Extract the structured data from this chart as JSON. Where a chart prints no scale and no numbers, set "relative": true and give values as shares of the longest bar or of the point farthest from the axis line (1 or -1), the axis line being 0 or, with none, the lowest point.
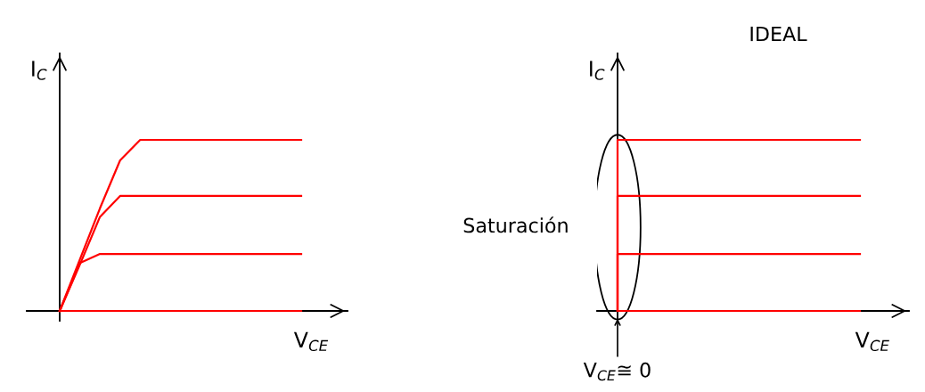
{
  "chart_data": [
    {
      "type": "line",
      "relative": true,
      "xlabel": "V$_{CE}$",
      "ylabel": "I$_{C}$",
      "categories": [
        null,
        null,
        null,
        null,
        null,
        null,
        null,
        null,
        null,
        null,
        null,
        null,
        null
      ],
      "series": [
        {
          "color": "#ff0000",
          "values": [
            0,
            0.3,
            0.6,
            0.88,
            1,
            1,
            1,
            1,
            1,
            1,
            1,
            1,
            1
          ]
        },
        {
          "color": "#ff0000",
          "values": [
            0,
            0.27,
            0.55,
            0.672,
            0.672,
            0.672,
            0.672,
            0.672,
            0.672,
            0.672,
            0.672,
            0.672,
            0.672
          ]
        },
        {
          "color": "#ff0000",
          "values": [
            0,
            0.28,
            0.333,
            0.333,
            0.333,
            0.333,
            0.333,
            0.333,
            0.333,
            0.333,
            0.333,
            0.333,
            0.333
          ]
        },
        {
          "color": "#ff0000",
          "values": [
            0,
            0,
            0,
            0,
            0,
            0,
            0,
            0,
            0,
            0,
            0,
            0,
            0
          ]
        }
      ]
    },
    {
      "type": "step",
      "relative": true,
      "title": "IDEAL",
      "xlabel": "V$_{CE}$",
      "ylabel": "I$_{C}$",
      "annotations": [
        "Saturación",
        "V$_{CE}$≅ 0"
      ],
      "categories": [
        null,
        null,
        null,
        null,
        null,
        null,
        null,
        null,
        null,
        null,
        null,
        null,
        null
      ],
      "series": [
        {
          "color": "#ff0000",
          "values": [
            0,
            1,
            1,
            1,
            1,
            1,
            1,
            1,
            1,
            1,
            1,
            1,
            1
          ]
        },
        {
          "color": "#ff0000",
          "values": [
            0,
            0.672,
            0.672,
            0.672,
            0.672,
            0.672,
            0.672,
            0.672,
            0.672,
            0.672,
            0.672,
            0.672,
            0.672
          ]
        },
        {
          "color": "#ff0000",
          "values": [
            0,
            0.333,
            0.333,
            0.333,
            0.333,
            0.333,
            0.333,
            0.333,
            0.333,
            0.333,
            0.333,
            0.333,
            0.333
          ]
        },
        {
          "color": "#ff0000",
          "values": [
            0,
            0,
            0,
            0,
            0,
            0,
            0,
            0,
            0,
            0,
            0,
            0,
            0
          ]
        }
      ]
    }
  ]
}
